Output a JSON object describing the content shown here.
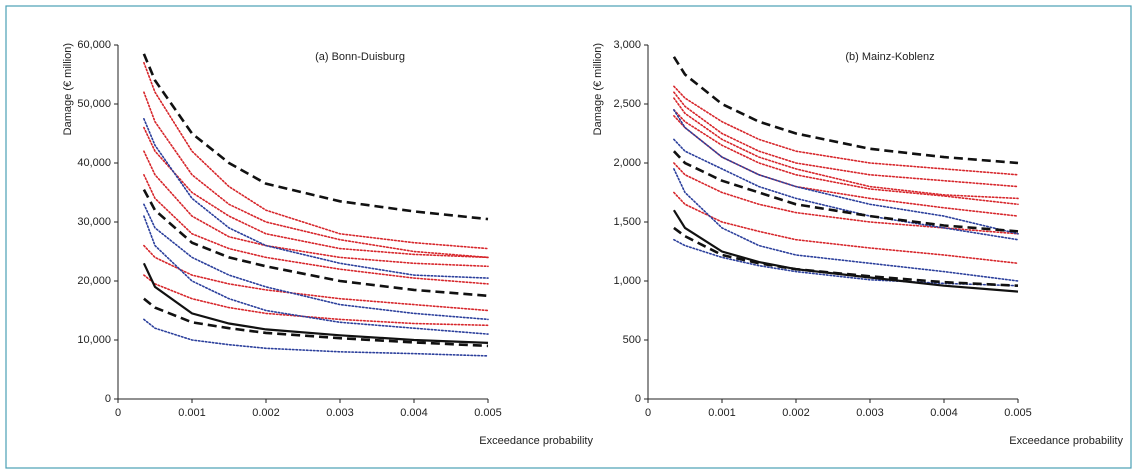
{
  "chart_data": [
    {
      "type": "line",
      "title": "(a) Bonn-Duisburg",
      "y_label": "Damage (€ million)",
      "x_label": "Exceedance probability",
      "x": [
        0.00035,
        0.0005,
        0.001,
        0.0015,
        0.002,
        0.003,
        0.004,
        0.005
      ],
      "xlim": [
        0,
        0.005
      ],
      "xticks": [
        0,
        0.001,
        0.002,
        0.003,
        0.004,
        0.005
      ],
      "ylim": [
        0,
        60000
      ],
      "yticks": [
        0,
        {
          "value": 10000,
          "label": "10,000"
        },
        {
          "value": 20000,
          "label": "20,000"
        },
        {
          "value": 30000,
          "label": "30,000"
        },
        {
          "value": 40000,
          "label": "40,000"
        },
        {
          "value": 50000,
          "label": "50,000"
        },
        {
          "value": 60000,
          "label": "60,000"
        }
      ],
      "series": [
        {
          "color": "#d7262b",
          "style": "dotted",
          "values": [
            57000,
            52000,
            42000,
            36000,
            32000,
            28000,
            26500,
            25500
          ]
        },
        {
          "color": "#d7262b",
          "style": "dotted",
          "values": [
            52000,
            47000,
            38000,
            33000,
            30000,
            27000,
            25000,
            24000
          ]
        },
        {
          "color": "#d7262b",
          "style": "dotted",
          "values": [
            46000,
            42000,
            35000,
            31000,
            28000,
            25500,
            24500,
            24000
          ]
        },
        {
          "color": "#d7262b",
          "style": "dotted",
          "values": [
            42000,
            38000,
            31000,
            27500,
            26000,
            24000,
            23000,
            22500
          ]
        },
        {
          "color": "#d7262b",
          "style": "dotted",
          "values": [
            38000,
            34000,
            28000,
            25500,
            24000,
            22000,
            20500,
            19500
          ]
        },
        {
          "color": "#d7262b",
          "style": "dotted",
          "values": [
            26000,
            24000,
            21000,
            19500,
            18500,
            17000,
            16000,
            15000
          ]
        },
        {
          "color": "#d7262b",
          "style": "dotted",
          "values": [
            21000,
            19500,
            17000,
            15500,
            14500,
            13500,
            12800,
            12500
          ]
        },
        {
          "color": "#2b3f9c",
          "style": "dotted",
          "values": [
            47500,
            43000,
            34000,
            29000,
            26000,
            23000,
            21000,
            20500
          ]
        },
        {
          "color": "#2b3f9c",
          "style": "dotted",
          "values": [
            33000,
            29000,
            24000,
            21000,
            19000,
            16000,
            14500,
            13500
          ]
        },
        {
          "color": "#2b3f9c",
          "style": "dotted",
          "values": [
            31000,
            26000,
            20000,
            17000,
            15000,
            13000,
            12000,
            11000
          ]
        },
        {
          "color": "#2b3f9c",
          "style": "dotted",
          "values": [
            13500,
            12000,
            10000,
            9200,
            8600,
            8000,
            7700,
            7300
          ]
        },
        {
          "color": "#111111",
          "style": "dashed",
          "values": [
            58500,
            54000,
            45000,
            40000,
            36500,
            33500,
            31800,
            30500
          ]
        },
        {
          "color": "#111111",
          "style": "dashed",
          "values": [
            35500,
            32000,
            26500,
            24000,
            22500,
            20000,
            18500,
            17500
          ]
        },
        {
          "color": "#111111",
          "style": "dashed",
          "values": [
            17000,
            15500,
            13000,
            12000,
            11200,
            10300,
            9600,
            9000
          ]
        },
        {
          "color": "#111111",
          "style": "solid",
          "values": [
            23000,
            19000,
            14500,
            12800,
            11800,
            10800,
            10000,
            9500
          ]
        }
      ]
    },
    {
      "type": "line",
      "title": "(b) Mainz-Koblenz",
      "y_label": "Damage (€ million)",
      "x_label": "Exceedance probability",
      "x": [
        0.00035,
        0.0005,
        0.001,
        0.0015,
        0.002,
        0.003,
        0.004,
        0.005
      ],
      "xlim": [
        0,
        0.005
      ],
      "xticks": [
        0,
        0.001,
        0.002,
        0.003,
        0.004,
        0.005
      ],
      "ylim": [
        0,
        3000
      ],
      "yticks": [
        0,
        500,
        {
          "value": 1000,
          "label": "1,000"
        },
        {
          "value": 1500,
          "label": "1,500"
        },
        {
          "value": 2000,
          "label": "2,000"
        },
        {
          "value": 2500,
          "label": "2,500"
        },
        {
          "value": 3000,
          "label": "3,000"
        }
      ],
      "series": [
        {
          "color": "#d7262b",
          "style": "dotted",
          "values": [
            2650,
            2550,
            2350,
            2200,
            2100,
            2000,
            1950,
            1900
          ]
        },
        {
          "color": "#d7262b",
          "style": "dotted",
          "values": [
            2600,
            2480,
            2250,
            2100,
            2000,
            1900,
            1850,
            1800
          ]
        },
        {
          "color": "#d7262b",
          "style": "dotted",
          "values": [
            2550,
            2420,
            2200,
            2050,
            1950,
            1800,
            1730,
            1700
          ]
        },
        {
          "color": "#d7262b",
          "style": "dotted",
          "values": [
            2450,
            2350,
            2150,
            2000,
            1900,
            1780,
            1720,
            1650
          ]
        },
        {
          "color": "#d7262b",
          "style": "dotted",
          "values": [
            2400,
            2300,
            2050,
            1900,
            1800,
            1700,
            1620,
            1550
          ]
        },
        {
          "color": "#d7262b",
          "style": "dotted",
          "values": [
            2000,
            1900,
            1750,
            1650,
            1580,
            1500,
            1450,
            1400
          ]
        },
        {
          "color": "#d7262b",
          "style": "dotted",
          "values": [
            1750,
            1650,
            1500,
            1420,
            1350,
            1280,
            1220,
            1150
          ]
        },
        {
          "color": "#2b3f9c",
          "style": "dotted",
          "values": [
            2450,
            2300,
            2050,
            1900,
            1800,
            1650,
            1550,
            1400
          ]
        },
        {
          "color": "#2b3f9c",
          "style": "dotted",
          "values": [
            2200,
            2100,
            1950,
            1800,
            1700,
            1550,
            1450,
            1350
          ]
        },
        {
          "color": "#2b3f9c",
          "style": "dotted",
          "values": [
            1950,
            1750,
            1450,
            1300,
            1220,
            1150,
            1080,
            1000
          ]
        },
        {
          "color": "#2b3f9c",
          "style": "dotted",
          "values": [
            1350,
            1300,
            1200,
            1130,
            1080,
            1010,
            980,
            960
          ]
        },
        {
          "color": "#111111",
          "style": "dashed",
          "values": [
            2900,
            2750,
            2500,
            2350,
            2250,
            2120,
            2050,
            2000
          ]
        },
        {
          "color": "#111111",
          "style": "dashed",
          "values": [
            2100,
            2000,
            1850,
            1750,
            1650,
            1550,
            1470,
            1420
          ]
        },
        {
          "color": "#111111",
          "style": "dashed",
          "values": [
            1450,
            1380,
            1220,
            1150,
            1100,
            1040,
            990,
            960
          ]
        },
        {
          "color": "#111111",
          "style": "solid",
          "values": [
            1600,
            1450,
            1250,
            1160,
            1100,
            1030,
            960,
            910
          ]
        }
      ]
    }
  ]
}
